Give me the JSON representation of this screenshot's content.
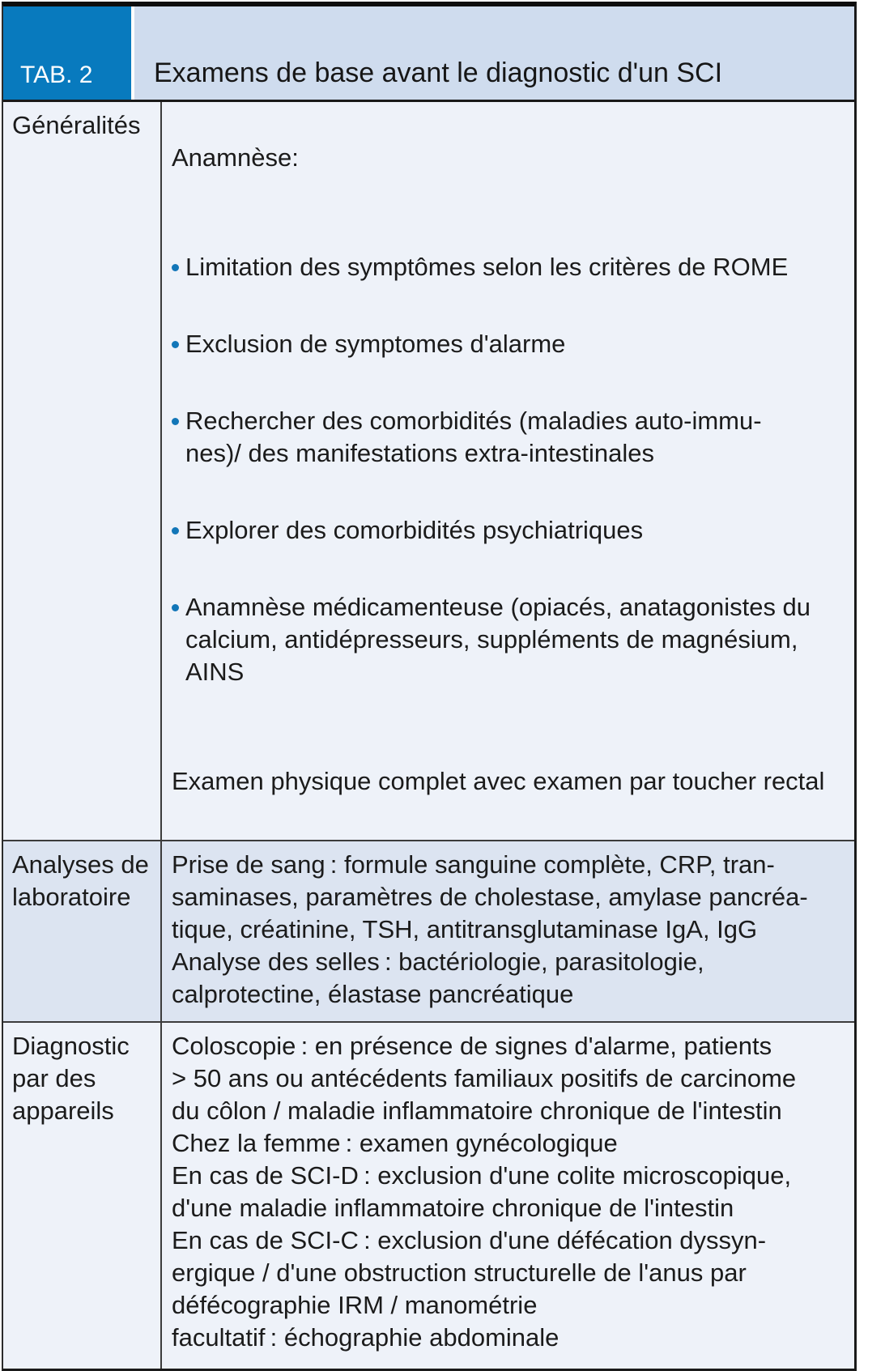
{
  "table": {
    "tag": "TAB. 2",
    "title": "Examens de base avant le diagnostic d'un SCI",
    "colors": {
      "accent_blue": "#087abe",
      "header_band_bg": "#cfdcee",
      "row_light_bg": "#eef2f9",
      "row_medium_bg": "#dce4f1",
      "bullet_dot": "#1276b8",
      "border_dark": "#1a1a1a",
      "text": "#1b1b1b"
    },
    "rows": [
      {
        "label": "Généralités",
        "intro": "Anamnèse:",
        "bullets": [
          "Limitation des symptômes selon les critères de ROME",
          "Exclusion de symptomes d'alarme",
          "Rechercher des comorbidités (maladies auto-immu-\nnes)/ des manifestations extra-intestinales",
          "Explorer des comorbidités psychiatriques",
          "Anamnèse médicamenteuse (opiacés, anatagonistes du\ncalcium, antidépresseurs, suppléments de magnésium,\nAINS"
        ],
        "outro": "Examen physique complet avec examen par toucher rectal"
      },
      {
        "label": "Analyses de\nlaboratoire",
        "text": "Prise de sang : formule sanguine complète, CRP, tran-\nsaminases, paramètres de cholestase, amylase pancréa-\ntique, créatinine, TSH, antitransglutaminase IgA, IgG\nAnalyse des selles : bactériologie, parasitologie,\ncalprotectine, élastase pancréatique"
      },
      {
        "label": "Diagnostic\npar des\nappareils",
        "text": "Coloscopie : en présence de signes d'alarme, patients\n> 50 ans ou antécédents familiaux positifs de carcinome\ndu côlon / maladie inflammatoire chronique de l'intestin\nChez la femme : examen gynécologique\nEn cas de SCI-D : exclusion d'une colite microscopique,\nd'une maladie inflammatoire chronique de l'intestin\nEn cas de SCI-C : exclusion d'une défécation dyssyn-\nergique / d'une obstruction structurelle de l'anus par\ndéfécographie IRM / manométrie\nfacultatif : échographie abdominale"
      }
    ]
  }
}
